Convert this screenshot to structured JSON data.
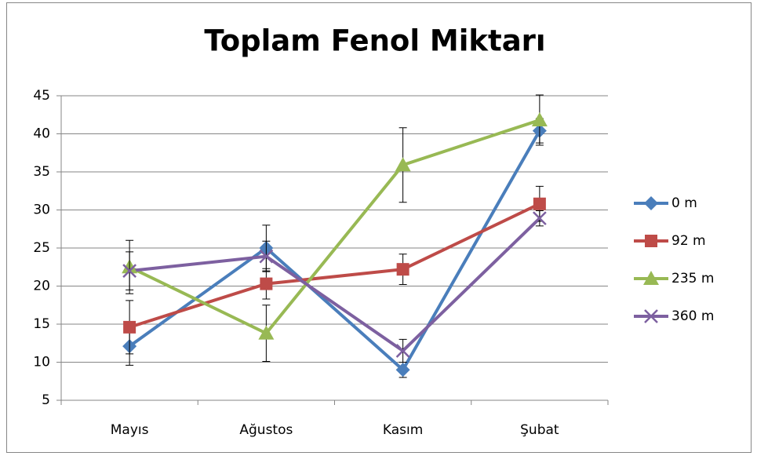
{
  "chart_data": {
    "type": "line",
    "title": "Toplam Fenol Miktarı",
    "categories": [
      "Mayıs",
      "Ağustos",
      "Kasım",
      "Şubat"
    ],
    "series": [
      {
        "name": "0 m",
        "color": "#4a7ebb",
        "marker": "diamond",
        "values": [
          12.1,
          25,
          9,
          40.4
        ],
        "errors": [
          2.5,
          3,
          1,
          1.6
        ]
      },
      {
        "name": "92 m",
        "color": "#be4b48",
        "marker": "square",
        "values": [
          14.6,
          20.3,
          22.2,
          30.8
        ],
        "errors": [
          3.5,
          2,
          2,
          2.3
        ]
      },
      {
        "name": "235 m",
        "color": "#98b954",
        "marker": "triangle",
        "values": [
          22.5,
          13.8,
          35.9,
          41.8
        ],
        "errors": [
          3.5,
          3.7,
          4.9,
          3.3
        ]
      },
      {
        "name": "360 m",
        "color": "#7d60a0",
        "marker": "x",
        "values": [
          22,
          23.9,
          11.5,
          28.9
        ],
        "errors": [
          2.5,
          2,
          1.5,
          1
        ]
      }
    ],
    "ylim": [
      5,
      45
    ],
    "yticks": [
      5,
      10,
      15,
      20,
      25,
      30,
      35,
      40,
      45
    ],
    "grid": true,
    "legend": "right"
  }
}
